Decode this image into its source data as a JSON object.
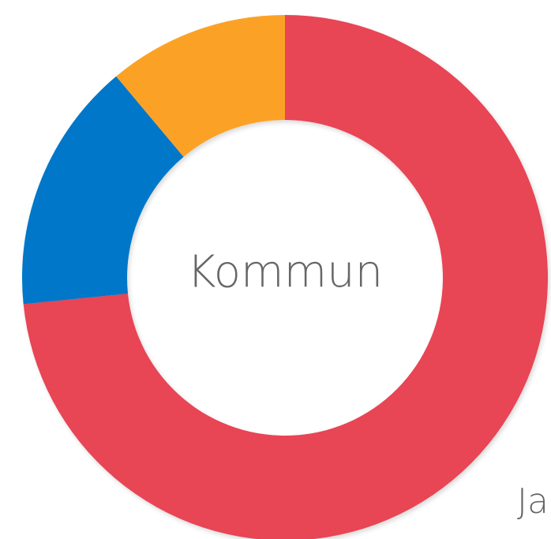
{
  "chart_data": {
    "type": "donut",
    "center_label": "Kommun",
    "categories": [
      "Ja",
      null,
      null
    ],
    "values": [
      73.4,
      15.5,
      11.1
    ],
    "colors": [
      "#e84455",
      "#0077c8",
      "#fba228"
    ]
  }
}
